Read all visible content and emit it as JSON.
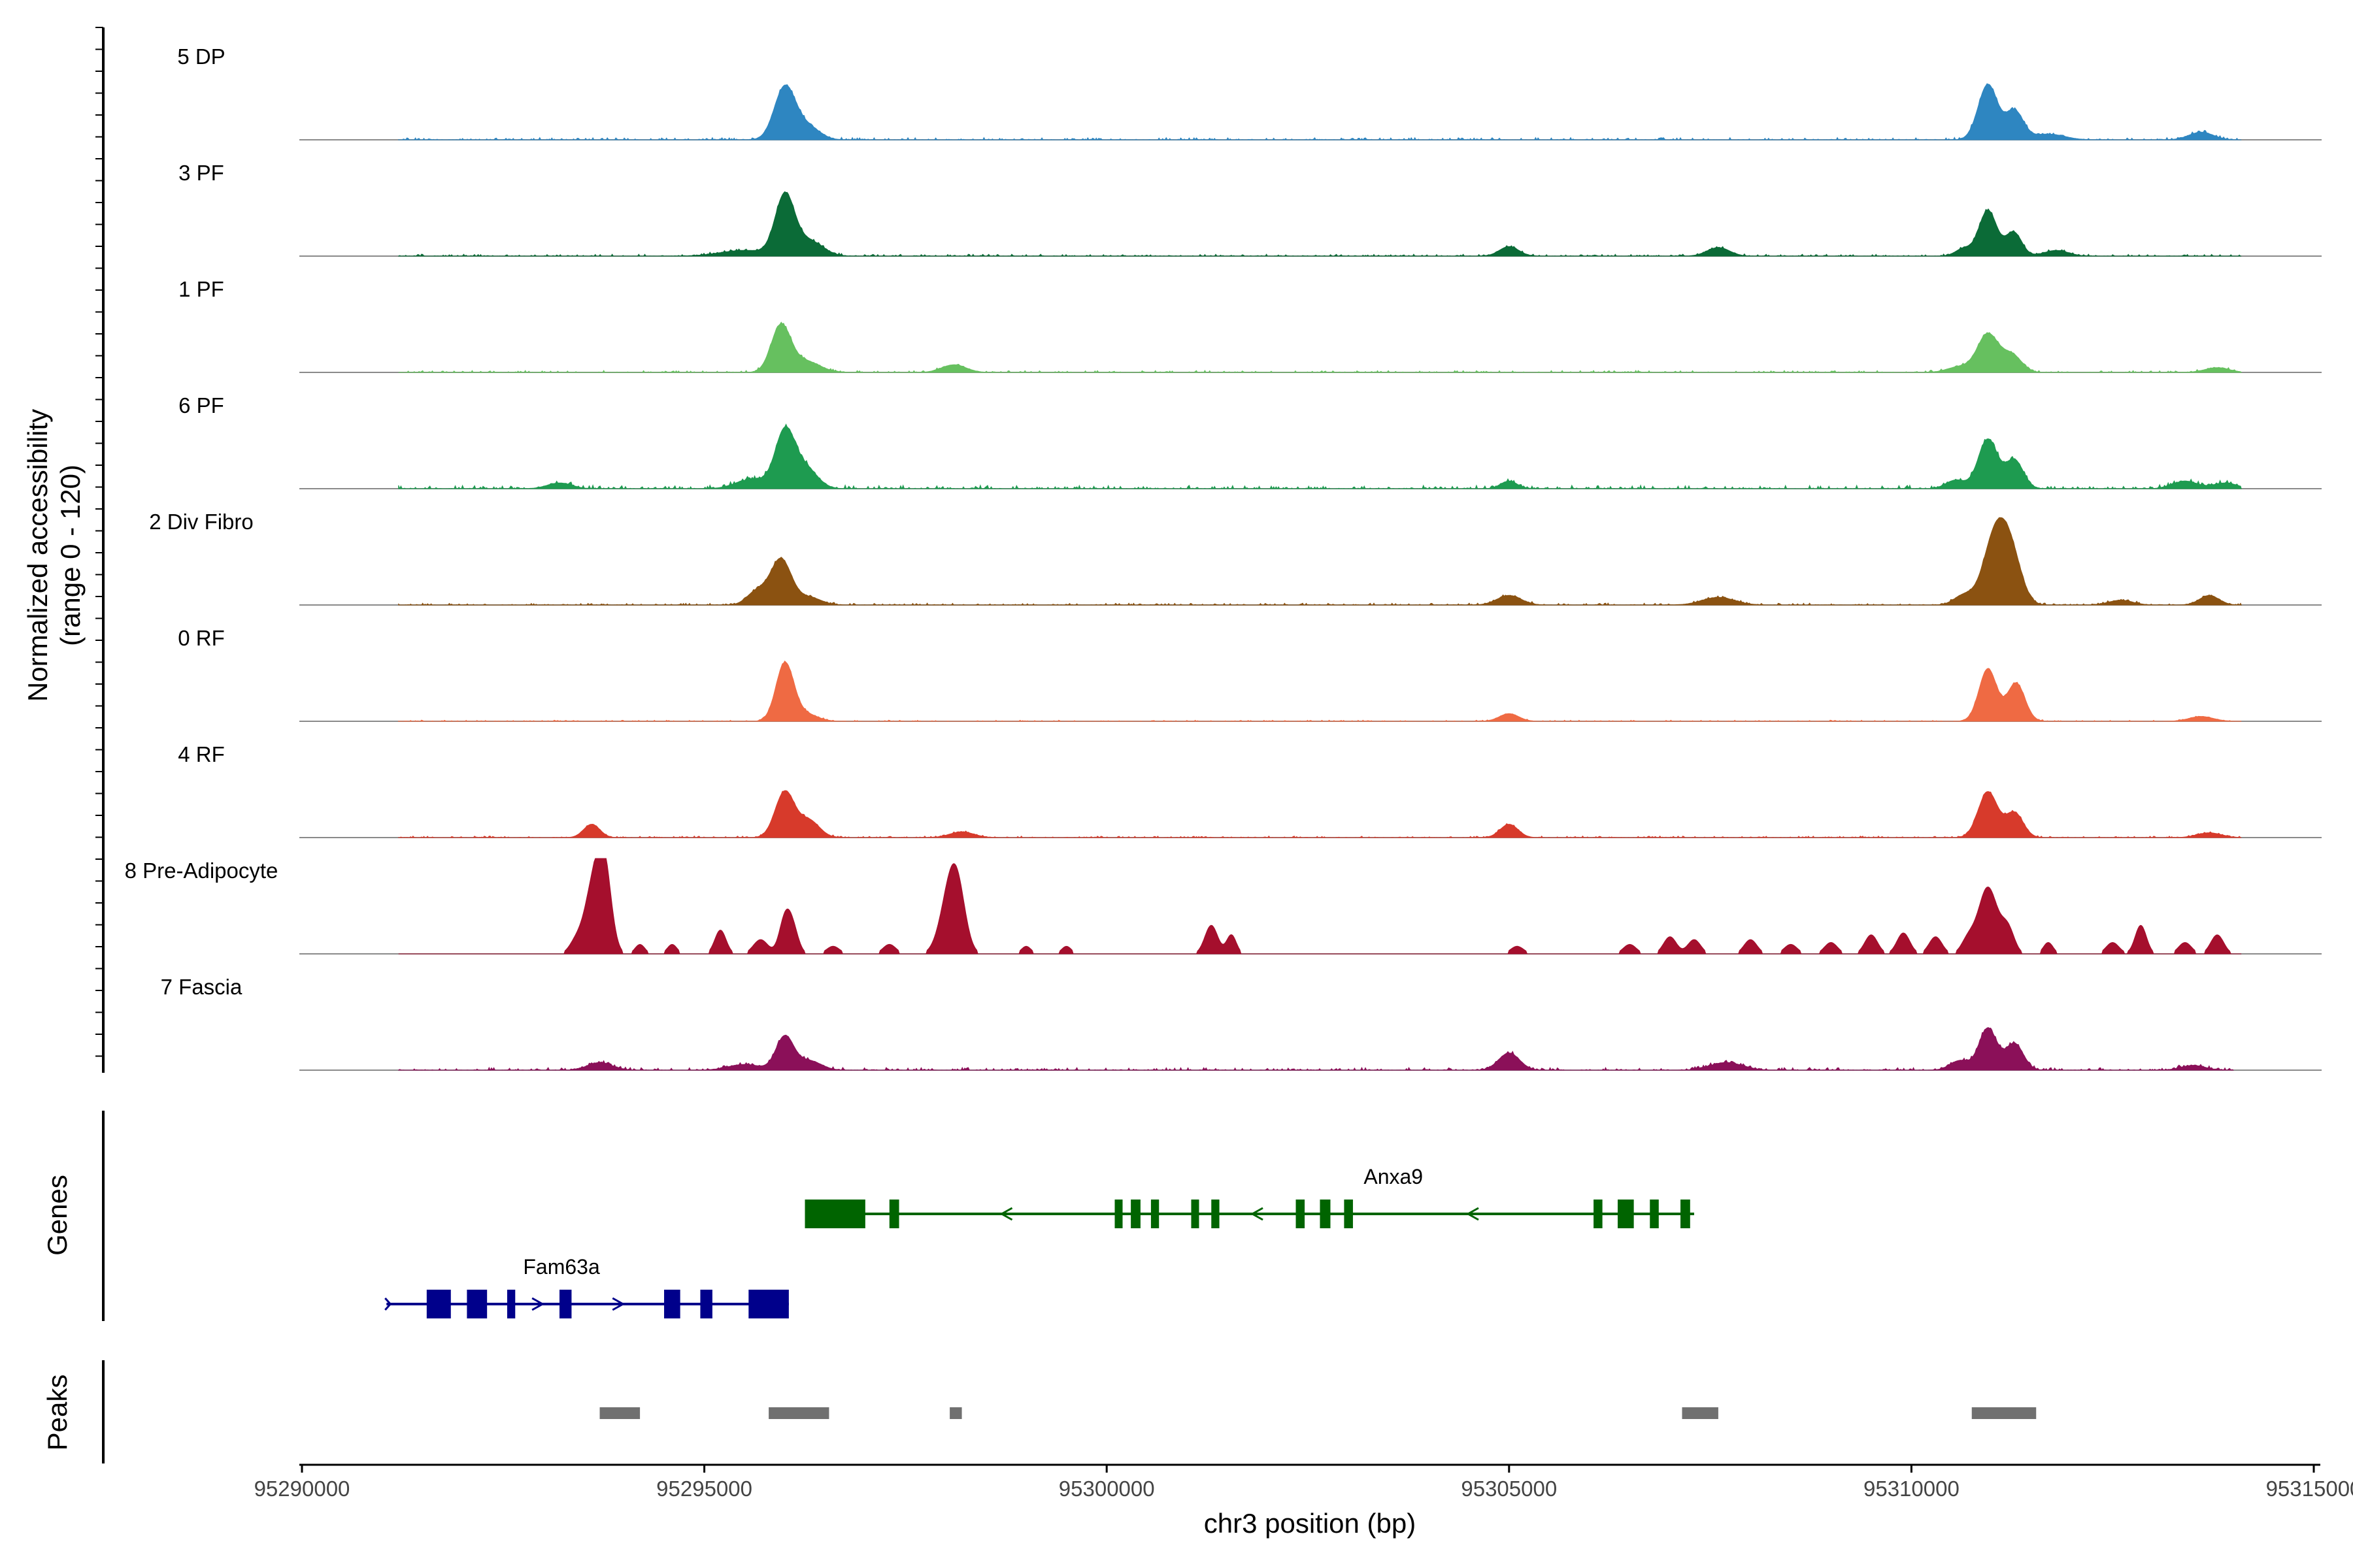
{
  "chart_data": {
    "type": "area",
    "xlabel": "chr3 position (bp)",
    "ylabel_line1": "Normalized accessibility",
    "ylabel_line2": "(range 0 - 120)",
    "y_range": [
      0,
      120
    ],
    "x_range": [
      95290000,
      95315000
    ],
    "x_ticks": [
      95290000,
      95295000,
      95300000,
      95305000,
      95310000,
      95315000
    ],
    "x_tick_labels": [
      "95290000",
      "95295000",
      "95300000",
      "95305000",
      "95310000",
      "95315000"
    ],
    "genes_label": "Genes",
    "peaks_label": "Peaks",
    "tracks": [
      {
        "name": "5 DP",
        "color": "#2E86C1",
        "noise": 0.06,
        "start": 95291200,
        "end": 95314100,
        "peaks": [
          [
            95296000,
            55,
            130
          ],
          [
            95296280,
            14,
            150
          ],
          [
            95310950,
            58,
            120
          ],
          [
            95311280,
            30,
            110
          ],
          [
            95311700,
            6,
            200
          ],
          [
            95313600,
            8,
            150
          ]
        ]
      },
      {
        "name": "3 PF",
        "color": "#0B6B37",
        "noise": 0.05,
        "start": 95291200,
        "end": 95314100,
        "peaks": [
          [
            95296000,
            62,
            120
          ],
          [
            95296300,
            16,
            170
          ],
          [
            95295500,
            6,
            300
          ],
          [
            95305000,
            10,
            120
          ],
          [
            95307600,
            9,
            140
          ],
          [
            95310950,
            48,
            110
          ],
          [
            95311270,
            25,
            100
          ],
          [
            95310650,
            8,
            100
          ],
          [
            95311800,
            6,
            150
          ]
        ]
      },
      {
        "name": "1 PF",
        "color": "#66C05F",
        "noise": 0.05,
        "start": 95291200,
        "end": 95314100,
        "peaks": [
          [
            95295950,
            48,
            120
          ],
          [
            95296250,
            12,
            180
          ],
          [
            95298100,
            8,
            150
          ],
          [
            95310950,
            40,
            130
          ],
          [
            95311250,
            18,
            120
          ],
          [
            95310600,
            6,
            150
          ],
          [
            95313800,
            5,
            150
          ]
        ]
      },
      {
        "name": "6 PF",
        "color": "#1E9B50",
        "noise": 0.09,
        "start": 95291200,
        "end": 95314100,
        "peaks": [
          [
            95296000,
            58,
            120
          ],
          [
            95296250,
            22,
            150
          ],
          [
            95295600,
            10,
            200
          ],
          [
            95293200,
            6,
            150
          ],
          [
            95305000,
            8,
            100
          ],
          [
            95310950,
            52,
            120
          ],
          [
            95311280,
            30,
            110
          ],
          [
            95310550,
            9,
            120
          ],
          [
            95313400,
            8,
            150
          ],
          [
            95313900,
            6,
            150
          ]
        ]
      },
      {
        "name": "2 Div Fibro",
        "color": "#8B5211",
        "noise": 0.05,
        "start": 95291200,
        "end": 95314100,
        "peaks": [
          [
            95295950,
            48,
            130
          ],
          [
            95295650,
            14,
            120
          ],
          [
            95296300,
            8,
            150
          ],
          [
            95305000,
            10,
            150
          ],
          [
            95307600,
            8,
            200
          ],
          [
            95311050,
            75,
            150
          ],
          [
            95311250,
            40,
            130
          ],
          [
            95310650,
            10,
            120
          ],
          [
            95313700,
            10,
            120
          ],
          [
            95312600,
            5,
            150
          ]
        ]
      },
      {
        "name": "0 RF",
        "color": "#EF6A43",
        "noise": 0.03,
        "start": 95291200,
        "end": 95314100,
        "peaks": [
          [
            95296000,
            60,
            110
          ],
          [
            95296250,
            8,
            150
          ],
          [
            95305000,
            8,
            120
          ],
          [
            95310950,
            55,
            110
          ],
          [
            95311300,
            40,
            110
          ],
          [
            95313600,
            5,
            150
          ]
        ]
      },
      {
        "name": "4 RF",
        "color": "#D73A2B",
        "noise": 0.04,
        "start": 95291200,
        "end": 95314100,
        "peaks": [
          [
            95293600,
            14,
            100
          ],
          [
            95296000,
            48,
            120
          ],
          [
            95296300,
            18,
            130
          ],
          [
            95298200,
            6,
            150
          ],
          [
            95305000,
            14,
            110
          ],
          [
            95310950,
            48,
            120
          ],
          [
            95311280,
            26,
            110
          ],
          [
            95313700,
            5,
            150
          ]
        ]
      },
      {
        "name": "8 Pre-Adipocyte",
        "color": "#A50F2D",
        "noise": 0.0,
        "start": 95291200,
        "end": 95314100,
        "peaks": [
          [
            95293750,
            95,
            90
          ],
          [
            95293600,
            60,
            100
          ],
          [
            95293400,
            12,
            80
          ],
          [
            95294200,
            10,
            60
          ],
          [
            95294600,
            10,
            60
          ],
          [
            95295200,
            25,
            70
          ],
          [
            95295700,
            15,
            90
          ],
          [
            95296000,
            35,
            70
          ],
          [
            95296100,
            25,
            70
          ],
          [
            95296600,
            8,
            80
          ],
          [
            95297300,
            10,
            80
          ],
          [
            95298050,
            60,
            120
          ],
          [
            95298150,
            45,
            100
          ],
          [
            95299000,
            8,
            60
          ],
          [
            95299500,
            8,
            60
          ],
          [
            95301300,
            30,
            80
          ],
          [
            95301550,
            20,
            60
          ],
          [
            95305100,
            8,
            80
          ],
          [
            95306500,
            10,
            80
          ],
          [
            95307000,
            18,
            80
          ],
          [
            95307300,
            15,
            80
          ],
          [
            95308000,
            15,
            80
          ],
          [
            95308500,
            10,
            80
          ],
          [
            95309000,
            12,
            80
          ],
          [
            95309500,
            20,
            80
          ],
          [
            95309900,
            22,
            80
          ],
          [
            95310300,
            18,
            80
          ],
          [
            95310700,
            14,
            80
          ],
          [
            95310950,
            70,
            120
          ],
          [
            95311200,
            25,
            80
          ],
          [
            95311700,
            12,
            60
          ],
          [
            95312500,
            12,
            80
          ],
          [
            95312850,
            30,
            70
          ],
          [
            95313400,
            12,
            80
          ],
          [
            95313800,
            20,
            80
          ]
        ]
      },
      {
        "name": "7 Fascia",
        "color": "#8B1059",
        "noise": 0.07,
        "start": 95291200,
        "end": 95314000,
        "peaks": [
          [
            95296000,
            35,
            110
          ],
          [
            95296300,
            10,
            150
          ],
          [
            95293700,
            8,
            150
          ],
          [
            95295500,
            6,
            200
          ],
          [
            95305000,
            18,
            130
          ],
          [
            95307700,
            8,
            200
          ],
          [
            95310950,
            44,
            110
          ],
          [
            95311280,
            28,
            110
          ],
          [
            95310600,
            10,
            120
          ],
          [
            95313500,
            5,
            150
          ]
        ]
      }
    ],
    "genes": [
      {
        "name": "Anxa9",
        "strand": "-",
        "color": "#006400",
        "start": 95296250,
        "end": 95307300,
        "exons": [
          [
            95296250,
            95297000
          ],
          [
            95297300,
            95297420
          ],
          [
            95300100,
            95300180
          ],
          [
            95300300,
            95300420
          ],
          [
            95300550,
            95300650
          ],
          [
            95301050,
            95301120
          ],
          [
            95301300,
            95301400
          ],
          [
            95302350,
            95302460
          ],
          [
            95302650,
            95302780
          ],
          [
            95302950,
            95303060
          ],
          [
            95306050,
            95306160
          ],
          [
            95306350,
            95306550
          ],
          [
            95306750,
            95306860
          ],
          [
            95307130,
            95307250
          ]
        ]
      },
      {
        "name": "Fam63a",
        "strand": "+",
        "color": "#00008B",
        "start": 95291050,
        "end": 95296050,
        "exons": [
          [
            95291550,
            95291850
          ],
          [
            95292050,
            95292300
          ],
          [
            95292550,
            95292650
          ],
          [
            95293200,
            95293350
          ],
          [
            95294500,
            95294700
          ],
          [
            95294950,
            95295100
          ],
          [
            95295550,
            95296050
          ]
        ]
      }
    ],
    "peaks": [
      [
        95293700,
        95294200
      ],
      [
        95295800,
        95296550
      ],
      [
        95298050,
        95298200
      ],
      [
        95307150,
        95307600
      ],
      [
        95310750,
        95311550
      ]
    ]
  }
}
